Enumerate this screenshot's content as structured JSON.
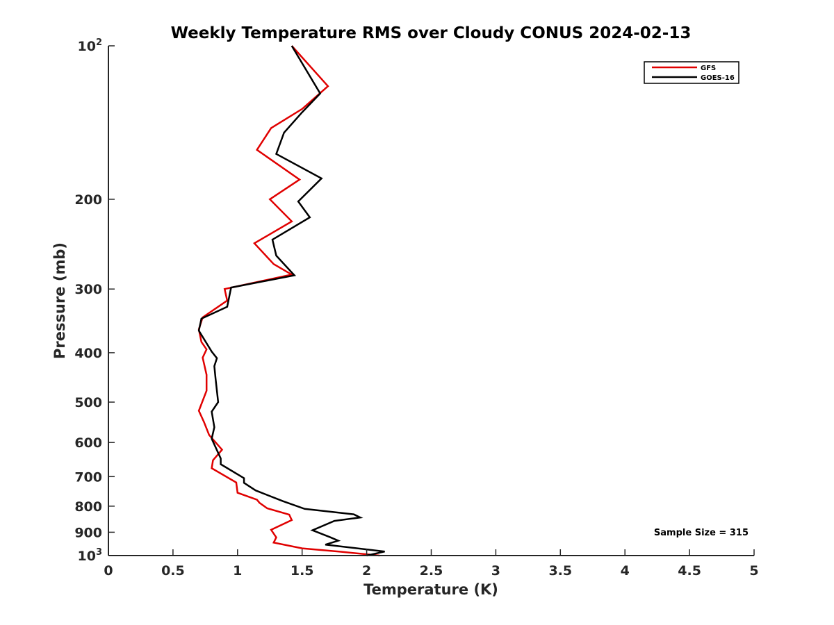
{
  "chart_data": {
    "type": "line",
    "title": "Weekly Temperature RMS over Cloudy CONUS 2024-02-13",
    "xlabel": "Temperature (K)",
    "ylabel": "Pressure (mb)",
    "xlim": [
      0,
      5
    ],
    "ylim": [
      100,
      1000
    ],
    "yscale": "log",
    "y_reversed": true,
    "x_ticks": [
      0,
      0.5,
      1,
      1.5,
      2,
      2.5,
      3,
      3.5,
      4,
      4.5,
      5
    ],
    "x_tick_labels": [
      "0",
      "0.5",
      "1",
      "1.5",
      "2",
      "2.5",
      "3",
      "3.5",
      "4",
      "4.5",
      "5"
    ],
    "y_ticks": [
      {
        "value": 100,
        "base": "10",
        "exp": "2",
        "label": ""
      },
      {
        "value": 200,
        "label": "200"
      },
      {
        "value": 300,
        "label": "300"
      },
      {
        "value": 400,
        "label": "400"
      },
      {
        "value": 500,
        "label": "500"
      },
      {
        "value": 600,
        "label": "600"
      },
      {
        "value": 700,
        "label": "700"
      },
      {
        "value": 800,
        "label": "800"
      },
      {
        "value": 900,
        "label": "900"
      },
      {
        "value": 1000,
        "base": "10",
        "exp": "3",
        "label": ""
      }
    ],
    "series": [
      {
        "name": "GFS",
        "color": "#e00000",
        "points": [
          [
            1.42,
            100
          ],
          [
            1.7,
            120
          ],
          [
            1.5,
            133
          ],
          [
            1.26,
            145
          ],
          [
            1.15,
            160
          ],
          [
            1.48,
            183
          ],
          [
            1.25,
            200
          ],
          [
            1.42,
            221
          ],
          [
            1.13,
            244
          ],
          [
            1.28,
            268
          ],
          [
            1.42,
            281
          ],
          [
            0.9,
            300
          ],
          [
            0.92,
            316
          ],
          [
            0.73,
            341
          ],
          [
            0.7,
            360
          ],
          [
            0.72,
            381
          ],
          [
            0.76,
            394
          ],
          [
            0.73,
            409
          ],
          [
            0.76,
            442
          ],
          [
            0.76,
            475
          ],
          [
            0.7,
            520
          ],
          [
            0.74,
            547
          ],
          [
            0.78,
            580
          ],
          [
            0.88,
            620
          ],
          [
            0.81,
            650
          ],
          [
            0.8,
            674
          ],
          [
            0.99,
            719
          ],
          [
            1.0,
            753
          ],
          [
            1.15,
            777
          ],
          [
            1.17,
            788
          ],
          [
            1.23,
            808
          ],
          [
            1.4,
            831
          ],
          [
            1.42,
            852
          ],
          [
            1.26,
            890
          ],
          [
            1.3,
            921
          ],
          [
            1.28,
            943
          ],
          [
            1.5,
            968
          ],
          [
            1.8,
            983
          ],
          [
            2.1,
            1000
          ]
        ]
      },
      {
        "name": "GOES-16",
        "color": "#000000",
        "points": [
          [
            1.42,
            100
          ],
          [
            1.64,
            124
          ],
          [
            1.5,
            135
          ],
          [
            1.36,
            148
          ],
          [
            1.3,
            163
          ],
          [
            1.65,
            182
          ],
          [
            1.47,
            202
          ],
          [
            1.56,
            217
          ],
          [
            1.27,
            240
          ],
          [
            1.3,
            258
          ],
          [
            1.44,
            282
          ],
          [
            0.95,
            298
          ],
          [
            0.92,
            325
          ],
          [
            0.72,
            343
          ],
          [
            0.7,
            362
          ],
          [
            0.8,
            398
          ],
          [
            0.84,
            410
          ],
          [
            0.82,
            425
          ],
          [
            0.83,
            450
          ],
          [
            0.85,
            500
          ],
          [
            0.8,
            522
          ],
          [
            0.82,
            560
          ],
          [
            0.8,
            590
          ],
          [
            0.87,
            645
          ],
          [
            0.87,
            662
          ],
          [
            1.05,
            705
          ],
          [
            1.05,
            720
          ],
          [
            1.14,
            745
          ],
          [
            1.35,
            782
          ],
          [
            1.52,
            810
          ],
          [
            1.9,
            830
          ],
          [
            1.95,
            842
          ],
          [
            1.75,
            855
          ],
          [
            1.58,
            892
          ],
          [
            1.72,
            921
          ],
          [
            1.78,
            935
          ],
          [
            1.68,
            952
          ],
          [
            2.14,
            982
          ],
          [
            2.0,
            1000
          ]
        ]
      }
    ],
    "legend": {
      "position": "top-right",
      "entries": [
        "GFS",
        "GOES-16"
      ]
    },
    "annotations": [
      {
        "text": "Sample Size = 315",
        "position": "bottom-right"
      }
    ]
  }
}
